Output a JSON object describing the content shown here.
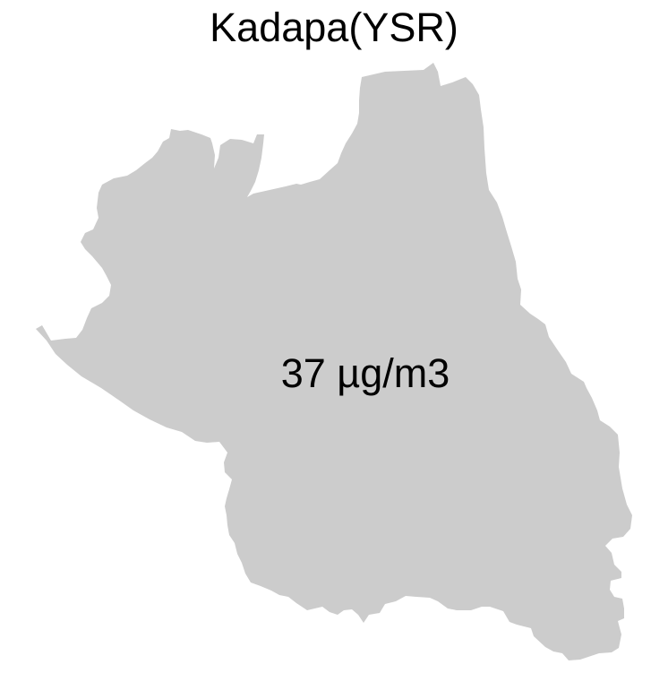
{
  "map": {
    "title": "Kadapa(YSR)",
    "region_name": "Kadapa(YSR)",
    "value_label": "37 µg/m3",
    "value": 37,
    "unit": "µg/m3",
    "fill_color": "#cccccc",
    "background_color": "#ffffff",
    "text_color": "#000000"
  }
}
